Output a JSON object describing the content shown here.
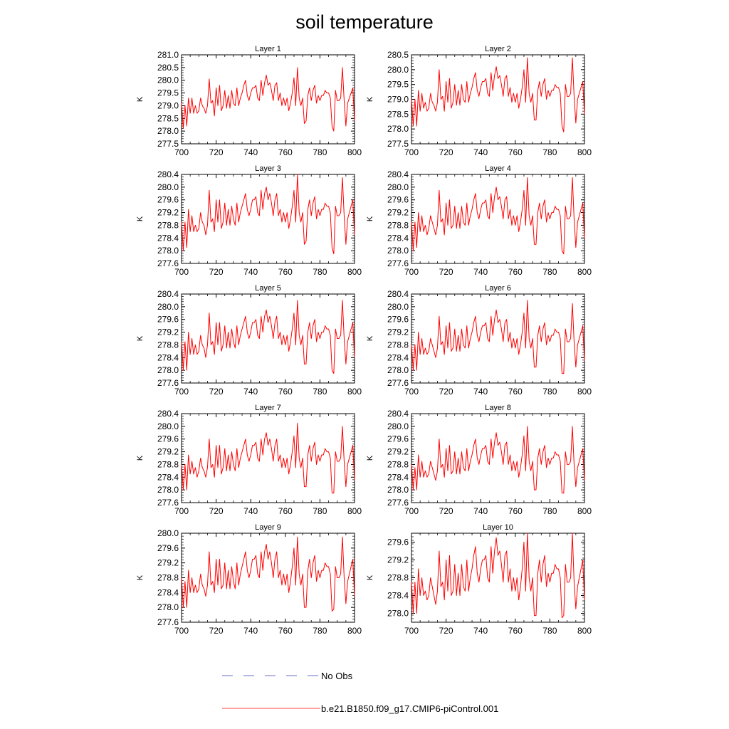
{
  "chart_data": {
    "type": "line",
    "title": "soil temperature",
    "x_range": [
      700,
      800
    ],
    "x_ticks": [
      700,
      720,
      740,
      760,
      780,
      800
    ],
    "ylabel": "K",
    "legend": [
      {
        "label": "No Obs",
        "style": "dashed",
        "color": "#6d6dc6"
      },
      {
        "label": "b.e21.B1850.f09_g17.CMIP6-piControl.001",
        "style": "solid",
        "color": "#ff0000"
      }
    ],
    "series_color": "#ff0000",
    "panels": [
      {
        "title": "Layer 1",
        "ylim": [
          277.5,
          281.0
        ],
        "yticks": [
          277.5,
          278.0,
          278.5,
          279.0,
          279.5,
          280.0,
          280.5,
          281.0
        ]
      },
      {
        "title": "Layer 2",
        "ylim": [
          277.5,
          280.5
        ],
        "yticks": [
          277.5,
          278.0,
          278.5,
          279.0,
          279.5,
          280.0,
          280.5
        ]
      },
      {
        "title": "Layer 3",
        "ylim": [
          277.6,
          280.4
        ],
        "yticks": [
          277.6,
          278.0,
          278.4,
          278.8,
          279.2,
          279.6,
          280.0,
          280.4
        ]
      },
      {
        "title": "Layer 4",
        "ylim": [
          277.6,
          280.4
        ],
        "yticks": [
          277.6,
          278.0,
          278.4,
          278.8,
          279.2,
          279.6,
          280.0,
          280.4
        ]
      },
      {
        "title": "Layer 5",
        "ylim": [
          277.6,
          280.4
        ],
        "yticks": [
          277.6,
          278.0,
          278.4,
          278.8,
          279.2,
          279.6,
          280.0,
          280.4
        ]
      },
      {
        "title": "Layer 6",
        "ylim": [
          277.6,
          280.4
        ],
        "yticks": [
          277.6,
          278.0,
          278.4,
          278.8,
          279.2,
          279.6,
          280.0,
          280.4
        ]
      },
      {
        "title": "Layer 7",
        "ylim": [
          277.6,
          280.4
        ],
        "yticks": [
          277.6,
          278.0,
          278.4,
          278.8,
          279.2,
          279.6,
          280.0,
          280.4
        ]
      },
      {
        "title": "Layer 8",
        "ylim": [
          277.6,
          280.4
        ],
        "yticks": [
          277.6,
          278.0,
          278.4,
          278.8,
          279.2,
          279.6,
          280.0,
          280.4
        ]
      },
      {
        "title": "Layer 9",
        "ylim": [
          277.6,
          280.0
        ],
        "yticks": [
          277.6,
          278.0,
          278.4,
          278.8,
          279.2,
          279.6,
          280.0
        ]
      },
      {
        "title": "Layer 10",
        "ylim": [
          277.8,
          279.8
        ],
        "yticks": [
          278.0,
          278.4,
          278.8,
          279.2,
          279.6
        ]
      }
    ],
    "years_start": 700,
    "years_step": 1,
    "layer1_values": [
      279.1,
      278.05,
      279.0,
      278.15,
      279.35,
      278.65,
      279.3,
      278.75,
      278.95,
      278.7,
      278.8,
      279.3,
      279.0,
      278.9,
      278.7,
      279.0,
      280.05,
      279.1,
      279.2,
      278.6,
      279.7,
      279.0,
      279.8,
      278.75,
      278.95,
      279.6,
      278.9,
      279.4,
      278.9,
      279.65,
      279.1,
      279.0,
      279.7,
      278.95,
      279.3,
      279.5,
      279.8,
      280.0,
      279.4,
      279.2,
      279.55,
      279.7,
      279.7,
      279.85,
      279.3,
      279.2,
      280.05,
      279.4,
      279.95,
      280.2,
      279.8,
      279.95,
      279.6,
      279.2,
      279.8,
      279.9,
      279.2,
      279.5,
      279.0,
      279.35,
      279.0,
      279.3,
      278.8,
      279.1,
      279.5,
      280.1,
      279.0,
      280.55,
      279.3,
      279.0,
      279.3,
      278.3,
      278.4,
      279.4,
      279.7,
      279.2,
      279.6,
      279.8,
      279.1,
      279.4,
      279.2,
      279.4,
      279.4,
      279.6,
      279.5,
      279.5,
      279.3,
      278.2,
      278.0,
      279.6,
      279.2,
      279.2,
      279.3,
      280.5,
      279.2,
      278.2,
      279.1,
      279.3,
      279.5,
      279.7,
      278.4
    ],
    "panel_values": [
      [
        279.1,
        278.1,
        279.0,
        278.2,
        279.3,
        278.7,
        279.3,
        278.7,
        279.0,
        278.7,
        278.8,
        279.3,
        279.0,
        278.9,
        278.7,
        279.0,
        280.05,
        279.1,
        279.2,
        278.6,
        279.7,
        279.0,
        279.8,
        278.8,
        279.0,
        279.6,
        278.9,
        279.4,
        278.9,
        279.6,
        279.1,
        279.0,
        279.7,
        279.0,
        279.3,
        279.5,
        279.8,
        280.0,
        279.4,
        279.2,
        279.5,
        279.7,
        279.7,
        279.8,
        279.3,
        279.2,
        280.0,
        279.4,
        279.9,
        280.2,
        279.8,
        279.9,
        279.6,
        279.2,
        279.8,
        279.9,
        279.2,
        279.5,
        279.0,
        279.3,
        279.0,
        279.3,
        278.8,
        279.1,
        279.5,
        280.1,
        279.0,
        280.5,
        279.3,
        279.0,
        279.3,
        278.3,
        278.4,
        279.4,
        279.7,
        279.2,
        279.6,
        279.8,
        279.1,
        279.4,
        279.2,
        279.4,
        279.4,
        279.6,
        279.5,
        279.5,
        279.3,
        278.2,
        278.0,
        279.6,
        279.2,
        279.2,
        279.3,
        280.5,
        279.2,
        278.2,
        279.1,
        279.3,
        279.5,
        279.7,
        278.4
      ],
      [
        279.0,
        278.1,
        279.0,
        278.1,
        279.3,
        278.6,
        279.2,
        278.7,
        278.9,
        278.6,
        278.7,
        279.2,
        278.9,
        278.8,
        278.6,
        278.9,
        280.0,
        279.0,
        279.1,
        278.6,
        279.6,
        278.9,
        279.7,
        278.7,
        278.9,
        279.5,
        278.8,
        279.3,
        278.8,
        279.5,
        279.0,
        278.9,
        279.6,
        278.9,
        279.2,
        279.4,
        279.7,
        279.9,
        279.3,
        279.1,
        279.4,
        279.6,
        279.6,
        279.7,
        279.2,
        279.1,
        279.9,
        279.3,
        279.8,
        280.1,
        279.7,
        279.8,
        279.5,
        279.1,
        279.7,
        279.8,
        279.1,
        279.4,
        278.9,
        279.2,
        278.9,
        279.2,
        278.7,
        279.0,
        279.4,
        280.0,
        278.9,
        280.4,
        279.2,
        278.9,
        279.2,
        278.3,
        278.3,
        279.3,
        279.6,
        279.1,
        279.5,
        279.7,
        279.0,
        279.3,
        279.1,
        279.3,
        279.3,
        279.5,
        279.4,
        279.4,
        279.2,
        278.1,
        277.9,
        279.5,
        279.1,
        279.1,
        279.2,
        280.4,
        279.1,
        278.2,
        279.0,
        279.2,
        279.4,
        279.6,
        278.5
      ],
      [
        278.9,
        278.0,
        278.9,
        278.1,
        279.3,
        278.6,
        279.1,
        278.6,
        278.8,
        278.6,
        278.7,
        279.2,
        278.9,
        278.8,
        278.5,
        278.8,
        279.9,
        278.9,
        279.0,
        278.6,
        279.6,
        278.9,
        279.6,
        278.7,
        278.9,
        279.5,
        278.8,
        279.3,
        278.8,
        279.4,
        279.0,
        278.8,
        279.5,
        278.9,
        279.2,
        279.4,
        279.6,
        279.8,
        279.3,
        279.1,
        279.3,
        279.6,
        279.6,
        279.7,
        279.2,
        279.1,
        279.9,
        279.3,
        279.8,
        280.0,
        279.6,
        279.8,
        279.5,
        279.1,
        279.6,
        279.8,
        279.1,
        279.3,
        278.9,
        279.2,
        278.9,
        279.2,
        278.7,
        279.0,
        279.4,
        279.9,
        278.9,
        280.4,
        279.2,
        278.9,
        279.2,
        278.2,
        278.3,
        279.3,
        279.6,
        279.1,
        279.5,
        279.7,
        279.0,
        279.3,
        279.1,
        279.3,
        279.3,
        279.5,
        279.4,
        279.4,
        279.2,
        278.1,
        277.9,
        279.4,
        279.1,
        279.1,
        279.2,
        280.3,
        279.1,
        278.2,
        279.0,
        279.2,
        279.4,
        279.6,
        278.5
      ],
      [
        278.9,
        278.0,
        278.9,
        278.1,
        279.2,
        278.6,
        279.1,
        278.6,
        278.8,
        278.5,
        278.7,
        279.1,
        278.9,
        278.7,
        278.5,
        278.8,
        279.9,
        278.9,
        279.0,
        278.5,
        279.5,
        278.8,
        279.6,
        278.7,
        278.8,
        279.4,
        278.7,
        279.2,
        278.7,
        279.4,
        278.9,
        278.8,
        279.5,
        278.8,
        279.1,
        279.3,
        279.6,
        279.8,
        279.2,
        279.0,
        279.3,
        279.5,
        279.5,
        279.6,
        279.1,
        279.0,
        279.8,
        279.2,
        279.7,
        280.0,
        279.6,
        279.7,
        279.4,
        279.0,
        279.6,
        279.7,
        279.0,
        279.3,
        278.8,
        279.1,
        278.8,
        279.1,
        278.6,
        278.9,
        279.3,
        279.9,
        278.8,
        280.3,
        279.1,
        278.8,
        279.1,
        278.2,
        278.2,
        279.2,
        279.5,
        279.0,
        279.4,
        279.6,
        278.9,
        279.2,
        279.0,
        279.2,
        279.2,
        279.4,
        279.3,
        279.3,
        279.1,
        278.0,
        277.9,
        279.4,
        279.0,
        279.0,
        279.1,
        280.3,
        279.0,
        278.1,
        278.9,
        279.1,
        279.3,
        279.5,
        278.4
      ],
      [
        278.9,
        278.0,
        278.9,
        278.0,
        279.2,
        278.5,
        279.0,
        278.5,
        278.8,
        278.5,
        278.6,
        279.1,
        278.8,
        278.7,
        278.4,
        278.8,
        279.8,
        278.8,
        278.9,
        278.5,
        279.5,
        278.8,
        279.5,
        278.6,
        278.8,
        279.4,
        278.7,
        279.2,
        278.7,
        279.3,
        278.9,
        278.7,
        279.4,
        278.8,
        279.1,
        279.3,
        279.5,
        279.7,
        279.2,
        279.0,
        279.2,
        279.5,
        279.5,
        279.6,
        279.1,
        279.0,
        279.7,
        279.2,
        279.7,
        279.9,
        279.5,
        279.7,
        279.4,
        279.0,
        279.5,
        279.7,
        279.0,
        279.2,
        278.8,
        279.1,
        278.8,
        279.1,
        278.6,
        278.9,
        279.3,
        279.8,
        278.8,
        280.2,
        279.1,
        278.8,
        279.1,
        278.2,
        278.2,
        279.2,
        279.5,
        279.0,
        279.4,
        279.6,
        278.9,
        279.2,
        279.0,
        279.2,
        279.2,
        279.4,
        279.3,
        279.3,
        279.1,
        278.0,
        277.9,
        279.3,
        279.0,
        279.0,
        279.1,
        280.2,
        279.0,
        278.2,
        278.9,
        279.1,
        279.3,
        279.5,
        278.4
      ],
      [
        278.8,
        278.0,
        278.8,
        278.0,
        279.2,
        278.5,
        279.0,
        278.5,
        278.7,
        278.5,
        278.6,
        279.0,
        278.8,
        278.6,
        278.4,
        278.7,
        279.7,
        278.8,
        278.9,
        278.5,
        279.4,
        278.7,
        279.5,
        278.6,
        278.7,
        279.3,
        278.6,
        279.1,
        278.6,
        279.3,
        278.8,
        278.7,
        279.4,
        278.7,
        279.0,
        279.2,
        279.5,
        279.7,
        279.1,
        278.9,
        279.2,
        279.4,
        279.4,
        279.5,
        279.0,
        278.9,
        279.7,
        279.1,
        279.6,
        279.9,
        279.5,
        279.6,
        279.3,
        278.9,
        279.5,
        279.6,
        278.9,
        279.2,
        278.7,
        279.0,
        278.7,
        279.0,
        278.5,
        278.8,
        279.2,
        279.8,
        278.7,
        280.2,
        279.0,
        278.7,
        279.0,
        278.1,
        278.1,
        279.1,
        279.4,
        278.9,
        279.3,
        279.5,
        278.8,
        279.1,
        278.9,
        279.1,
        279.1,
        279.3,
        279.2,
        279.2,
        279.0,
        277.9,
        277.9,
        279.3,
        278.9,
        278.9,
        279.0,
        280.1,
        278.9,
        278.1,
        278.8,
        279.0,
        279.2,
        279.4,
        278.3
      ],
      [
        278.8,
        278.0,
        278.8,
        278.0,
        279.1,
        278.5,
        278.9,
        278.5,
        278.7,
        278.4,
        278.6,
        279.0,
        278.7,
        278.6,
        278.4,
        278.7,
        279.6,
        278.7,
        278.8,
        278.4,
        279.4,
        278.7,
        279.4,
        278.5,
        278.7,
        279.3,
        278.6,
        279.1,
        278.6,
        279.2,
        278.8,
        278.6,
        279.3,
        278.7,
        279.0,
        279.2,
        279.4,
        279.6,
        279.1,
        278.9,
        279.1,
        279.4,
        279.4,
        279.5,
        279.0,
        278.9,
        279.6,
        279.1,
        279.6,
        279.8,
        279.4,
        279.6,
        279.3,
        278.9,
        279.4,
        279.6,
        278.9,
        279.1,
        278.7,
        279.0,
        278.7,
        279.0,
        278.5,
        278.8,
        279.2,
        279.7,
        278.7,
        280.1,
        279.0,
        278.7,
        279.0,
        278.1,
        278.1,
        279.1,
        279.4,
        278.9,
        279.3,
        279.5,
        278.8,
        279.1,
        278.9,
        279.1,
        279.1,
        279.3,
        279.2,
        279.2,
        279.0,
        277.9,
        277.9,
        279.2,
        278.9,
        278.9,
        279.0,
        280.0,
        278.9,
        278.1,
        278.8,
        279.0,
        279.2,
        279.4,
        278.3
      ],
      [
        278.8,
        278.0,
        278.7,
        278.0,
        279.1,
        278.4,
        278.9,
        278.4,
        278.6,
        278.4,
        278.5,
        278.9,
        278.7,
        278.5,
        278.3,
        278.6,
        279.6,
        278.7,
        278.8,
        278.4,
        279.3,
        278.6,
        279.4,
        278.5,
        278.6,
        279.2,
        278.5,
        279.0,
        278.5,
        279.2,
        278.7,
        278.6,
        279.3,
        278.6,
        278.9,
        279.1,
        279.4,
        279.6,
        279.0,
        278.8,
        279.1,
        279.3,
        279.3,
        279.4,
        278.9,
        278.8,
        279.6,
        279.0,
        279.5,
        279.8,
        279.4,
        279.5,
        279.2,
        278.8,
        279.4,
        279.5,
        278.8,
        279.1,
        278.6,
        278.9,
        278.6,
        278.9,
        278.4,
        278.7,
        279.1,
        279.7,
        278.6,
        280.0,
        278.9,
        278.6,
        278.9,
        278.0,
        278.0,
        279.0,
        279.3,
        278.8,
        279.2,
        279.4,
        278.7,
        279.0,
        278.8,
        279.0,
        279.0,
        279.2,
        279.1,
        279.1,
        278.9,
        277.9,
        277.9,
        279.2,
        278.8,
        278.8,
        278.9,
        280.0,
        278.8,
        278.1,
        278.7,
        278.9,
        279.1,
        279.3,
        278.3
      ],
      [
        278.8,
        278.0,
        278.7,
        278.0,
        279.0,
        278.4,
        278.8,
        278.4,
        278.6,
        278.4,
        278.5,
        278.9,
        278.6,
        278.5,
        278.3,
        278.6,
        279.5,
        278.6,
        278.7,
        278.4,
        279.3,
        278.6,
        279.3,
        278.5,
        278.6,
        279.2,
        278.5,
        279.0,
        278.5,
        279.1,
        278.7,
        278.5,
        279.2,
        278.6,
        278.9,
        279.1,
        279.3,
        279.5,
        279.0,
        278.8,
        279.0,
        279.3,
        279.3,
        279.4,
        278.9,
        278.8,
        279.5,
        279.0,
        279.5,
        279.7,
        279.3,
        279.5,
        279.2,
        278.8,
        279.3,
        279.5,
        278.8,
        279.0,
        278.6,
        278.9,
        278.6,
        278.9,
        278.4,
        278.7,
        279.1,
        279.6,
        278.6,
        279.9,
        278.9,
        278.6,
        278.9,
        278.0,
        278.0,
        279.0,
        279.3,
        278.8,
        279.2,
        279.4,
        278.7,
        279.0,
        278.8,
        279.0,
        279.0,
        279.2,
        279.1,
        279.1,
        278.9,
        277.9,
        277.95,
        279.1,
        278.8,
        278.8,
        278.9,
        279.9,
        278.8,
        278.1,
        278.7,
        278.9,
        279.1,
        279.3,
        278.3
      ],
      [
        278.7,
        278.0,
        278.7,
        278.0,
        279.0,
        278.4,
        278.8,
        278.4,
        278.5,
        278.3,
        278.4,
        278.8,
        278.6,
        278.4,
        278.2,
        278.5,
        279.4,
        278.6,
        278.7,
        278.3,
        279.2,
        278.5,
        279.3,
        278.4,
        278.5,
        279.1,
        278.4,
        278.9,
        278.4,
        279.1,
        278.6,
        278.5,
        279.2,
        278.5,
        278.8,
        279.0,
        279.3,
        279.5,
        278.9,
        278.7,
        279.0,
        279.2,
        279.2,
        279.3,
        278.8,
        278.7,
        279.5,
        278.9,
        279.4,
        279.7,
        279.3,
        279.4,
        279.1,
        278.7,
        279.3,
        279.4,
        278.7,
        279.0,
        278.5,
        278.8,
        278.5,
        278.8,
        278.3,
        278.6,
        279.0,
        279.6,
        278.5,
        279.8,
        278.8,
        278.5,
        278.8,
        277.95,
        277.95,
        278.9,
        279.2,
        278.7,
        279.1,
        279.3,
        278.6,
        278.9,
        278.7,
        278.9,
        278.9,
        279.1,
        279.0,
        279.0,
        278.8,
        277.9,
        277.95,
        279.1,
        278.7,
        278.7,
        278.8,
        279.8,
        278.7,
        278.1,
        278.6,
        278.8,
        279.0,
        279.2,
        278.3
      ]
    ]
  }
}
